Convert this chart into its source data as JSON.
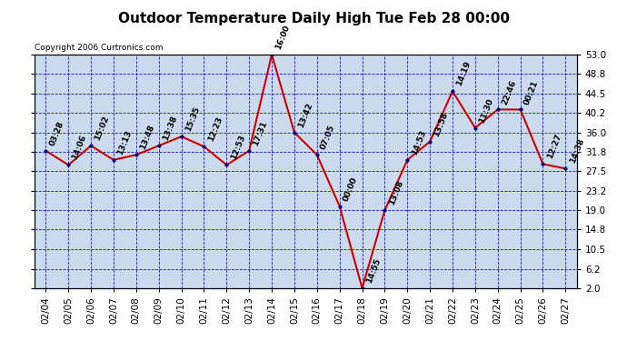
{
  "title": "Outdoor Temperature Daily High Tue Feb 28 00:00",
  "copyright": "Copyright 2006 Curtronics.com",
  "x_labels": [
    "02/04",
    "02/05",
    "02/06",
    "02/07",
    "02/08",
    "02/09",
    "02/10",
    "02/11",
    "02/12",
    "02/13",
    "02/14",
    "02/15",
    "02/16",
    "02/17",
    "02/18",
    "02/19",
    "02/20",
    "02/21",
    "02/22",
    "02/23",
    "02/24",
    "02/25",
    "02/26",
    "02/27"
  ],
  "y_values": [
    32.0,
    28.9,
    33.1,
    30.0,
    31.1,
    33.1,
    35.1,
    32.9,
    28.9,
    32.0,
    53.0,
    36.0,
    31.1,
    19.9,
    2.0,
    19.0,
    30.0,
    34.0,
    45.0,
    37.0,
    41.0,
    41.0,
    29.1,
    28.1
  ],
  "point_labels": [
    "03:28",
    "14:06",
    "15:02",
    "13:13",
    "13:48",
    "13:38",
    "15:35",
    "12:23",
    "12:53",
    "17:31",
    "16:00",
    "13:42",
    "07:05",
    "00:00",
    "14:55",
    "13:08",
    "14:53",
    "13:58",
    "14:19",
    "11:30",
    "22:46",
    "00:21",
    "12:27",
    "14:38"
  ],
  "y_ticks": [
    2.0,
    6.2,
    10.5,
    14.8,
    19.0,
    23.2,
    27.5,
    31.8,
    36.0,
    40.2,
    44.5,
    48.8,
    53.0
  ],
  "ylim": [
    2.0,
    53.0
  ],
  "line_color": "#cc0000",
  "marker_color": "#000080",
  "bg_color": "#ffffff",
  "plot_bg_color": "#ccdaee",
  "grid_color": "#0000cc",
  "title_fontsize": 11,
  "tick_fontsize": 7.5,
  "label_fontsize": 6.5,
  "copyright_fontsize": 6.5
}
